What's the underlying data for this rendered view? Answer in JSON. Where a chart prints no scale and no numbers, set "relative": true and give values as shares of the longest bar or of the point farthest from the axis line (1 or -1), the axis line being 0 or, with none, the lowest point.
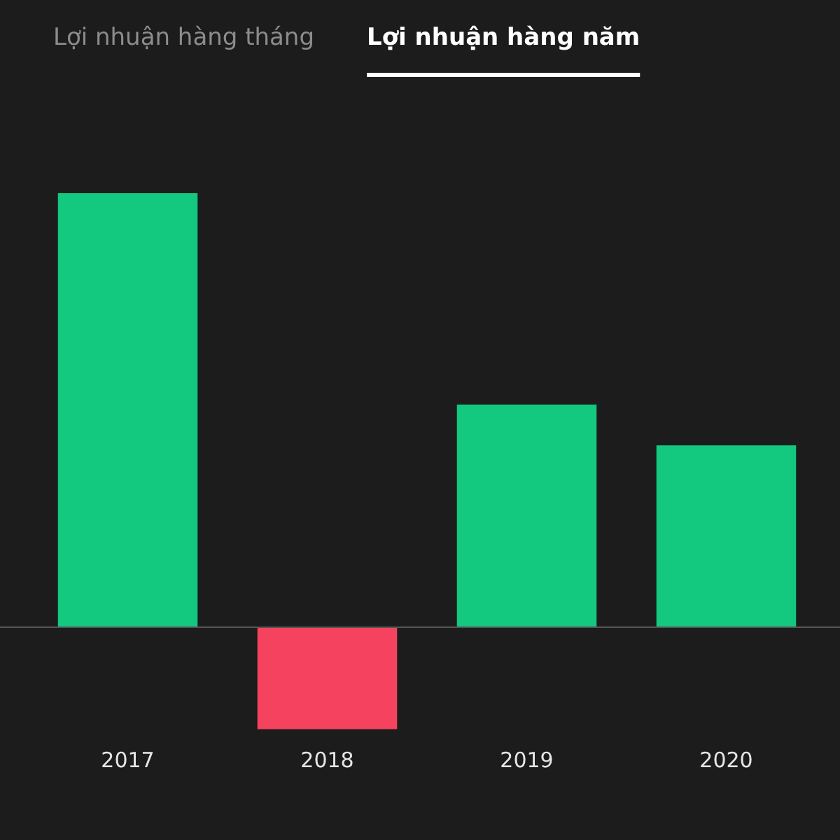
{
  "chart_data": {
    "type": "bar",
    "relative": true,
    "annotations": [
      "Lợi nhuận hàng tháng",
      "Lợi nhuận hàng năm"
    ],
    "categories": [
      "2017",
      "2018",
      "2019",
      "2020"
    ],
    "values": [
      1,
      -0.235,
      0.513,
      0.419
    ],
    "colors": [
      "#12c97f",
      "#f5435f",
      "#12c97f",
      "#12c97f"
    ]
  }
}
